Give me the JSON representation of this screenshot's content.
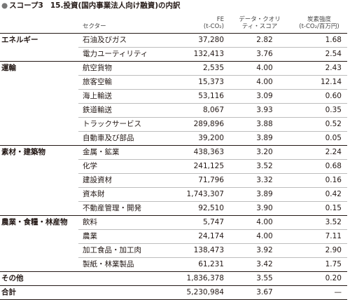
{
  "title": {
    "bullet": "●",
    "scope": "スコープ3",
    "text": "15.投資(国内事業法人向け融資)の内訳"
  },
  "headers": {
    "sector": "セクター",
    "fe": "FE\n(t-CO₂)",
    "dq": "データ・クオリ\nティ・スコア",
    "ci": "炭素強度\n(t-CO₂/百万円)"
  },
  "groups": [
    {
      "name": "エネルギー",
      "rows": [
        {
          "sector": "石油及びガス",
          "fe": "37,280",
          "dq": "2.82",
          "ci": "1.68"
        },
        {
          "sector": "電力ユーティリティ",
          "fe": "132,413",
          "dq": "3.76",
          "ci": "2.54"
        }
      ]
    },
    {
      "name": "運輸",
      "rows": [
        {
          "sector": "航空貨物",
          "fe": "2,535",
          "dq": "4.00",
          "ci": "2.43"
        },
        {
          "sector": "旅客空輸",
          "fe": "15,373",
          "dq": "4.00",
          "ci": "12.14"
        },
        {
          "sector": "海上輸送",
          "fe": "53,116",
          "dq": "3.09",
          "ci": "0.60"
        },
        {
          "sector": "鉄道輸送",
          "fe": "8,067",
          "dq": "3.93",
          "ci": "0.35"
        },
        {
          "sector": "トラックサービス",
          "fe": "289,896",
          "dq": "3.88",
          "ci": "0.52"
        },
        {
          "sector": "自動車及び部品",
          "fe": "39,200",
          "dq": "3.89",
          "ci": "0.05"
        }
      ]
    },
    {
      "name": "素材・建築物",
      "rows": [
        {
          "sector": "金属・鉱業",
          "fe": "438,363",
          "dq": "3.20",
          "ci": "2.24"
        },
        {
          "sector": "化学",
          "fe": "241,125",
          "dq": "3.52",
          "ci": "0.68"
        },
        {
          "sector": "建設資材",
          "fe": "71,796",
          "dq": "3.32",
          "ci": "0.16"
        },
        {
          "sector": "資本財",
          "fe": "1,743,307",
          "dq": "3.89",
          "ci": "0.42"
        },
        {
          "sector": "不動産管理・開発",
          "fe": "92,510",
          "dq": "3.90",
          "ci": "0.15"
        }
      ]
    },
    {
      "name": "農業・食糧・林産物",
      "rows": [
        {
          "sector": "飲料",
          "fe": "5,747",
          "dq": "4.00",
          "ci": "3.52"
        },
        {
          "sector": "農業",
          "fe": "24,174",
          "dq": "4.00",
          "ci": "7.11"
        },
        {
          "sector": "加工食品・加工肉",
          "fe": "138,473",
          "dq": "3.92",
          "ci": "2.90"
        },
        {
          "sector": "製紙・林業製品",
          "fe": "61,231",
          "dq": "3.42",
          "ci": "1.75"
        }
      ]
    }
  ],
  "totals": [
    {
      "label": "その他",
      "fe": "1,836,378",
      "dq": "3.55",
      "ci": "0.20"
    },
    {
      "label": "合計",
      "fe": "5,230,984",
      "dq": "3.67",
      "ci": "—"
    }
  ]
}
